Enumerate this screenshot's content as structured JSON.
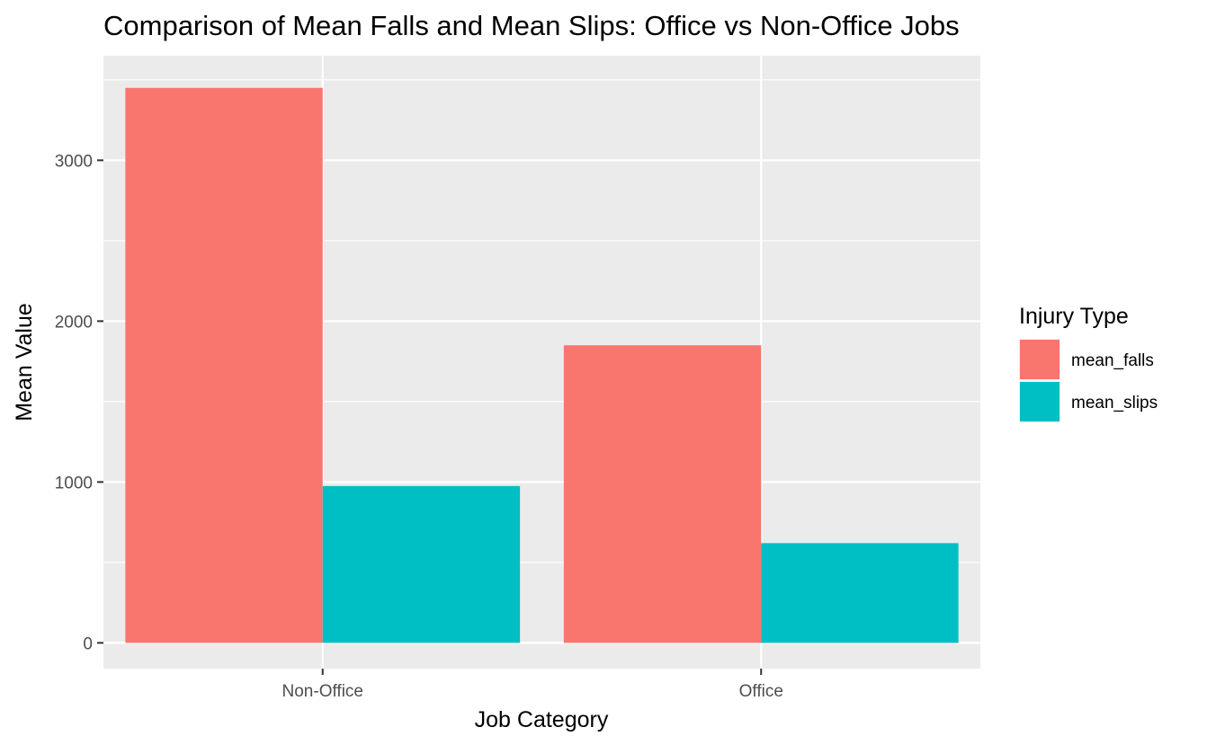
{
  "chart_data": {
    "type": "bar",
    "title": "Comparison of Mean Falls and Mean Slips: Office vs Non-Office Jobs",
    "xlabel": "Job Category",
    "ylabel": "Mean Value",
    "categories": [
      "Non-Office",
      "Office"
    ],
    "series": [
      {
        "name": "mean_falls",
        "color": "#F8766D",
        "values": [
          3450,
          1850
        ]
      },
      {
        "name": "mean_slips",
        "color": "#00BFC4",
        "values": [
          975,
          620
        ]
      }
    ],
    "ylim": [
      -160,
      3650
    ],
    "yticks": [
      0,
      1000,
      2000,
      3000
    ],
    "ytick_labels": [
      "0",
      "1000",
      "2000",
      "3000"
    ],
    "grid": true,
    "legend": {
      "title": "Injury Type",
      "position": "right"
    }
  }
}
